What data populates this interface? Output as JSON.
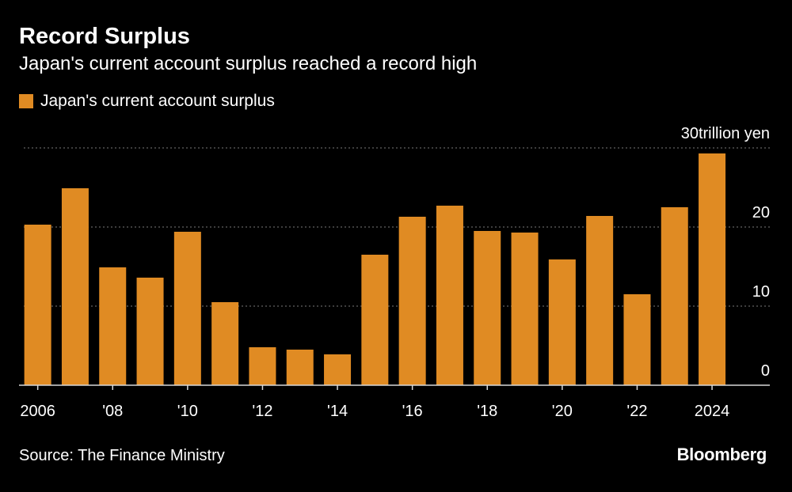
{
  "header": {
    "title": "Record Surplus",
    "subtitle": "Japan's current account surplus reached a record high"
  },
  "legend": {
    "label": "Japan's current account surplus"
  },
  "footer": {
    "source": "Source: The Finance Ministry",
    "brand": "Bloomberg"
  },
  "colors": {
    "bar": "#e08b23",
    "background": "#000000",
    "grid": "#7a7a7a",
    "text": "#ffffff"
  },
  "chart_data": {
    "type": "bar",
    "title": "Record Surplus",
    "subtitle": "Japan's current account surplus reached a record high",
    "xlabel": "",
    "ylabel": "",
    "y_unit_label": "trillion yen",
    "categories": [
      "2006",
      "2007",
      "2008",
      "2009",
      "2010",
      "2011",
      "2012",
      "2013",
      "2014",
      "2015",
      "2016",
      "2017",
      "2018",
      "2019",
      "2020",
      "2021",
      "2022",
      "2023",
      "2024"
    ],
    "x_tick_labels": [
      "2006",
      "'08",
      "'10",
      "'12",
      "'14",
      "'16",
      "'18",
      "'20",
      "'22",
      "2024"
    ],
    "x_tick_categories": [
      "2006",
      "2008",
      "2010",
      "2012",
      "2014",
      "2016",
      "2018",
      "2020",
      "2022",
      "2024"
    ],
    "series": [
      {
        "name": "Japan's current account surplus",
        "values": [
          20.3,
          24.9,
          14.9,
          13.6,
          19.4,
          10.5,
          4.8,
          4.5,
          3.9,
          16.5,
          21.3,
          22.7,
          19.5,
          19.3,
          15.9,
          21.4,
          11.5,
          22.5,
          29.3
        ]
      }
    ],
    "ylim": [
      0,
      30
    ],
    "y_ticks": [
      0,
      10,
      20,
      30
    ],
    "y_tick_labels": [
      "0",
      "10",
      "20",
      "30"
    ],
    "grid": true,
    "legend_position": "top-left"
  }
}
